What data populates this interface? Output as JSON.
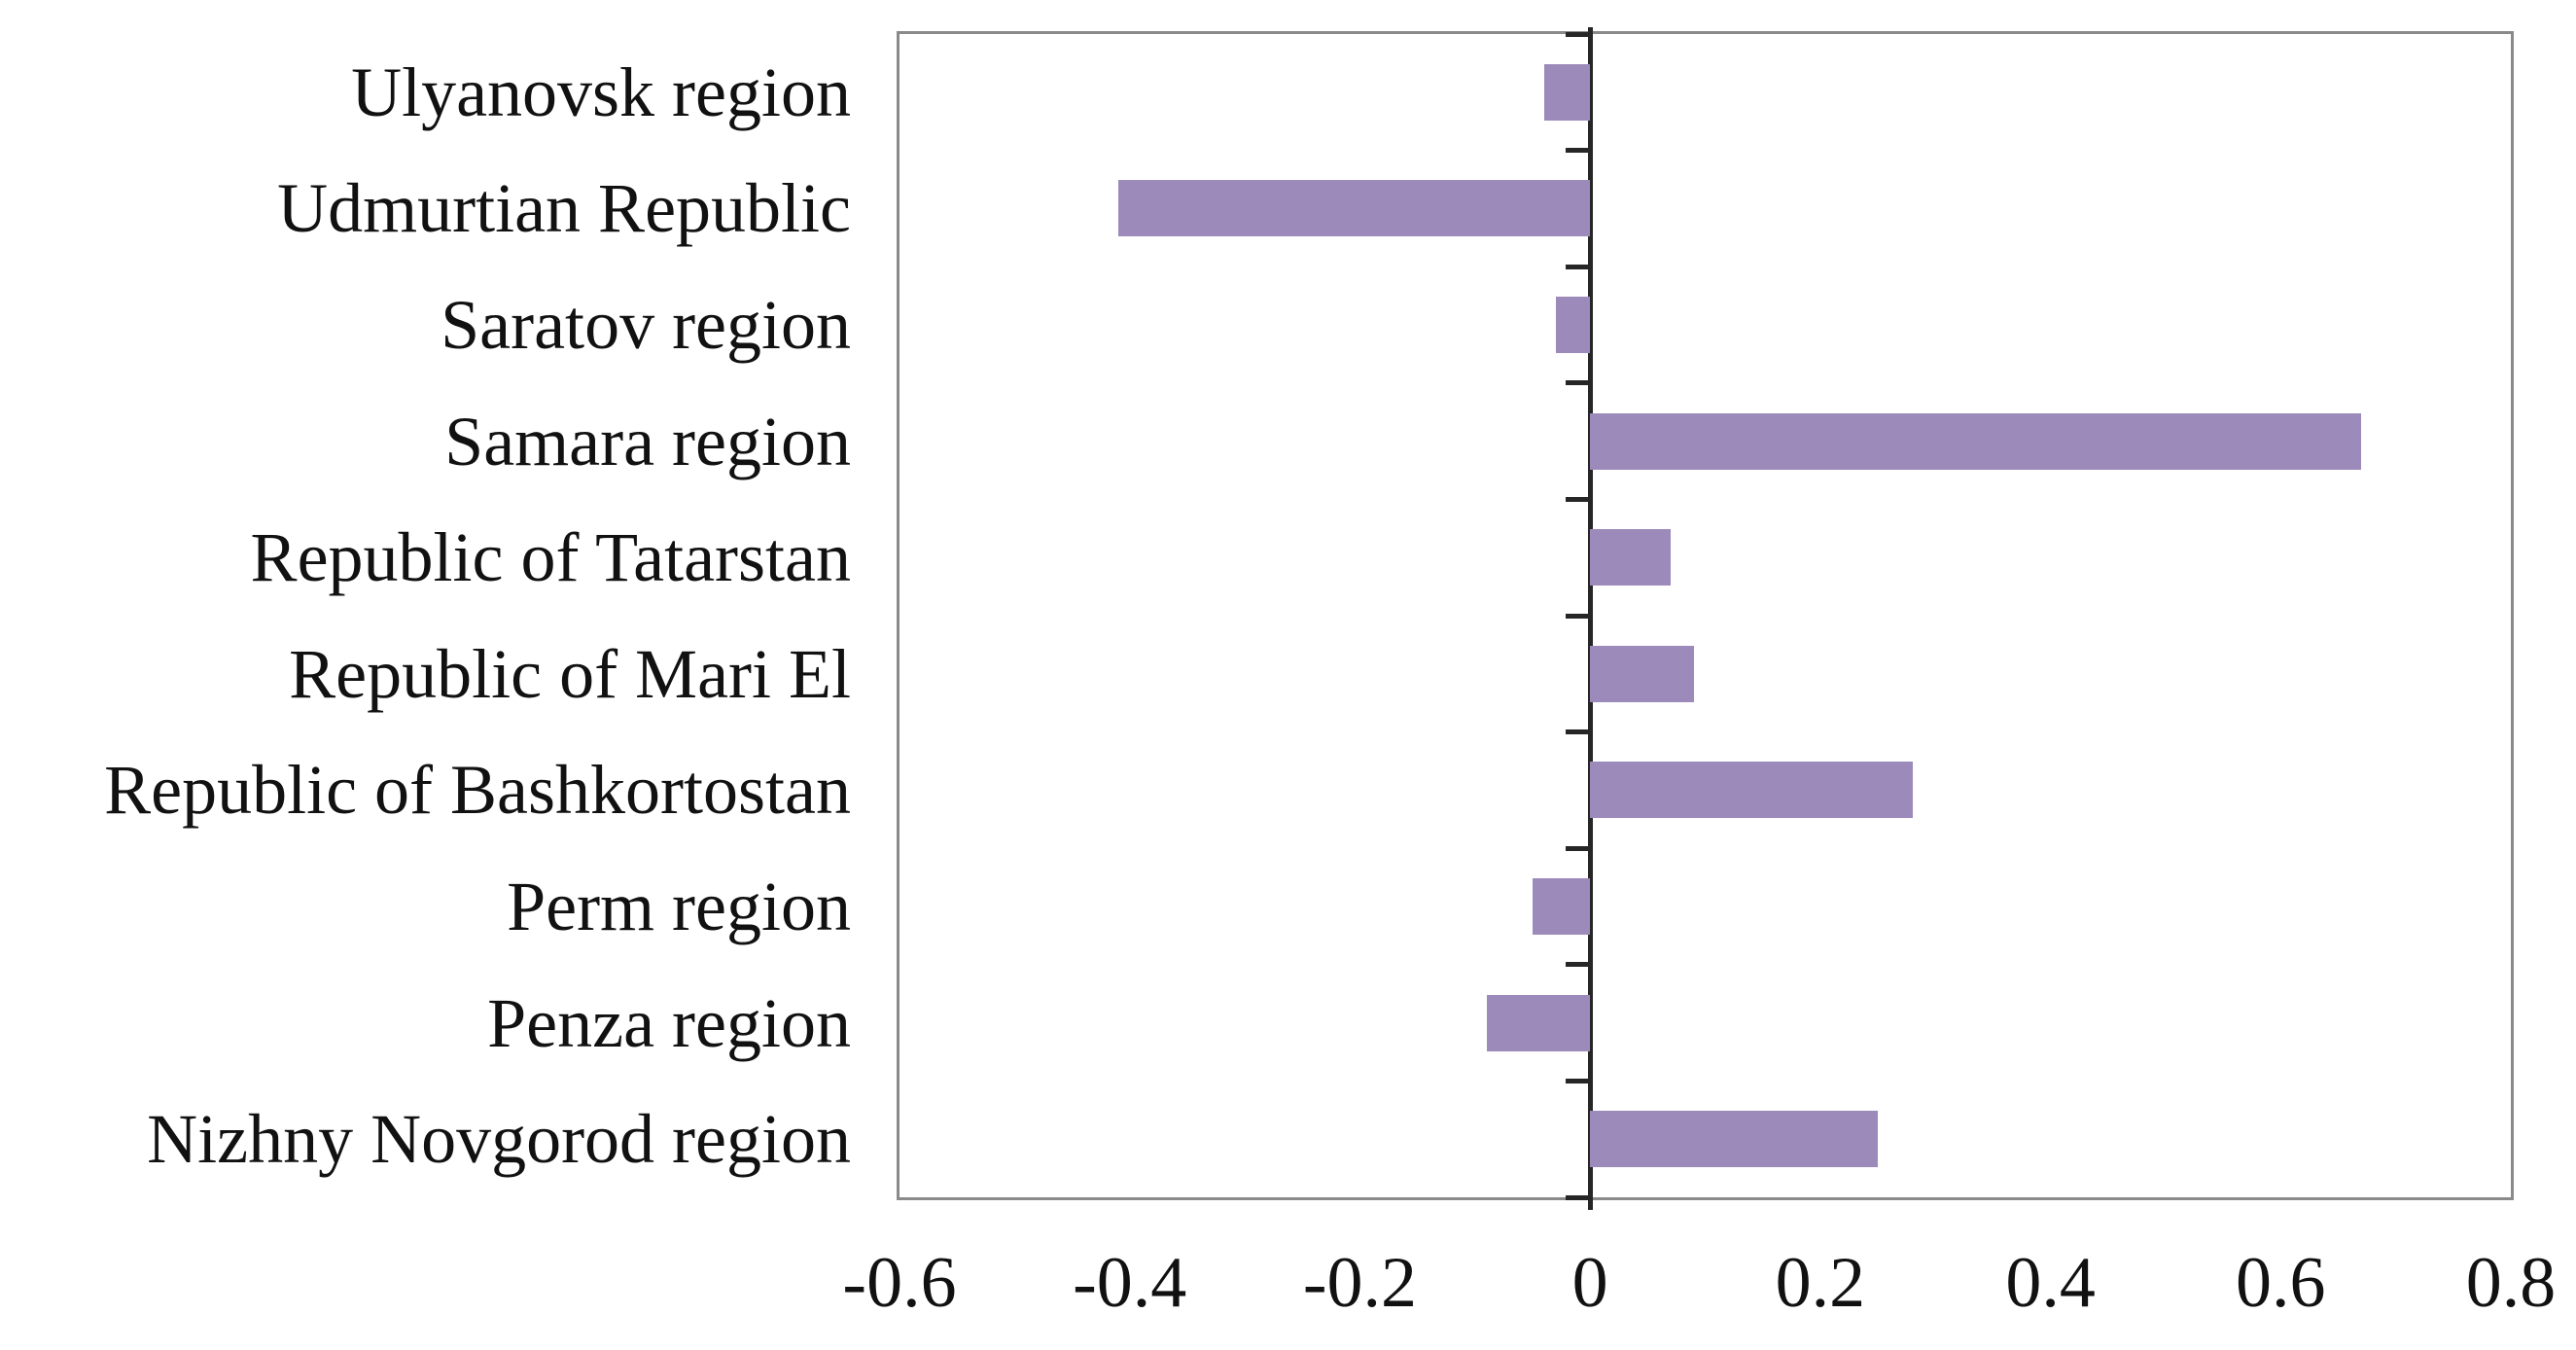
{
  "chart_data": {
    "type": "bar",
    "orientation": "horizontal",
    "title": "",
    "categories": [
      "Ulyanovsk region",
      "Udmurtian Republic",
      "Saratov region",
      "Samara region",
      "Republic of Tatarstan",
      "Republic of Mari El",
      "Republic of Bashkortostan",
      "Perm region",
      "Penza region",
      "Nizhny Novgorod region"
    ],
    "values": [
      -0.04,
      -0.41,
      -0.03,
      0.67,
      0.07,
      0.09,
      0.28,
      -0.05,
      -0.09,
      0.25
    ],
    "xlim": [
      -0.6,
      0.8
    ],
    "xtick_values": [
      -0.6,
      -0.4,
      -0.2,
      0,
      0.2,
      0.4,
      0.6,
      0.8
    ],
    "xtick_labels": [
      "-0.6",
      "-0.4",
      "-0.2",
      "0",
      "0.2",
      "0.4",
      "0.6",
      "0.8"
    ],
    "grid": false,
    "legend_position": "none",
    "colors": {
      "bar": "#9c8aba",
      "axis": "#262626",
      "plot_border": "#8a8a8a",
      "text": "#111111",
      "background": "#ffffff"
    }
  }
}
